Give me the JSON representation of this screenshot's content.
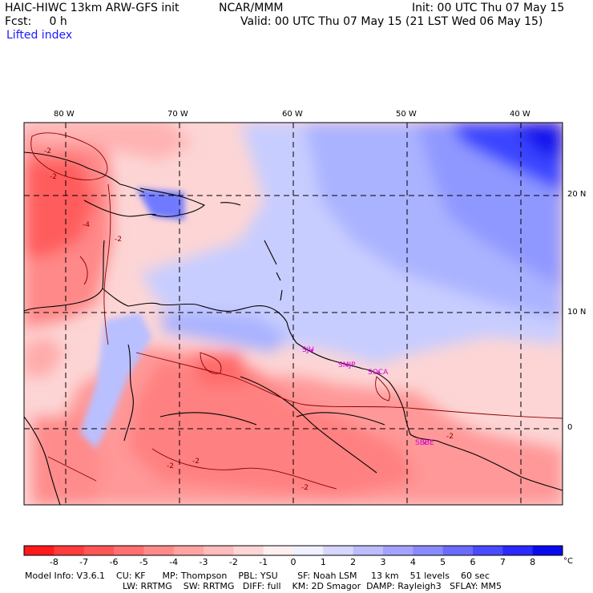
{
  "header": {
    "model_title": "HAIC-HIWC 13km ARW-GFS init",
    "org": "NCAR/MMM",
    "init": "Init: 00 UTC Thu 07 May 15",
    "fcst": "Fcst:     0 h",
    "valid": "Valid: 00 UTC Thu 07 May 15 (21 LST Wed 06 May 15)",
    "field": "Lifted index"
  },
  "map": {
    "lon_labels": [
      "80 W",
      "70 W",
      "60 W",
      "50 W",
      "40 W"
    ],
    "lat_labels": [
      "20 N",
      "10 N",
      "0"
    ],
    "stations": [
      "SJU",
      "SMJP",
      "SOCA",
      "SBBE"
    ],
    "contour_labels": [
      "-2",
      "-2",
      "-4",
      "-2",
      "-2",
      "-2",
      "-2",
      "-2"
    ]
  },
  "colorbar": {
    "ticks": [
      "-8",
      "-7",
      "-6",
      "-5",
      "-4",
      "-3",
      "-2",
      "-1",
      "0",
      "1",
      "2",
      "3",
      "4",
      "5",
      "6",
      "7",
      "8"
    ],
    "unit": "°C",
    "colors": [
      "#ff1a1a",
      "#ff3b3b",
      "#ff5656",
      "#ff7070",
      "#ff8a8a",
      "#ffa3a3",
      "#ffbcbc",
      "#ffd6d6",
      "#fff0f0",
      "#f0f0ff",
      "#d6d6ff",
      "#bcbcff",
      "#a3a3ff",
      "#8a8aff",
      "#6a6aff",
      "#4a4aff",
      "#2a2aff",
      "#0a0aee"
    ]
  },
  "footer": {
    "line1": "Model Info: V3.6.1    CU: KF      MP: Thompson    PBL: YSU       SF: Noah LSM     13 km    51 levels    60 sec",
    "line2": "LW: RRTMG    SW: RRTMG   DIFF: full    KM: 2D Smagor  DAMP: Rayleigh3   SFLAY: MM5"
  }
}
